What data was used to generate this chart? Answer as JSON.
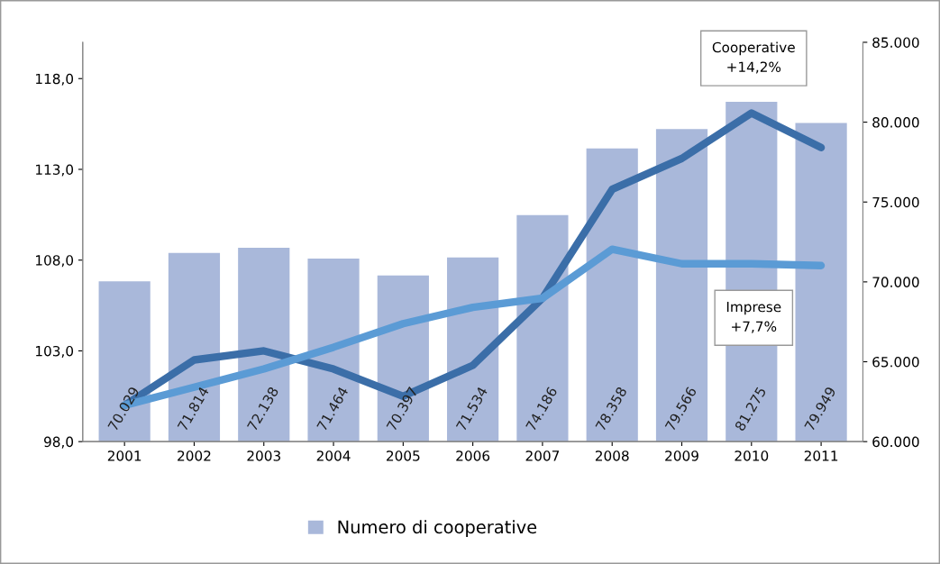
{
  "chart_data": {
    "type": "bar",
    "categories": [
      "2001",
      "2002",
      "2003",
      "2004",
      "2005",
      "2006",
      "2007",
      "2008",
      "2009",
      "2010",
      "2011"
    ],
    "series": [
      {
        "name": "Numero di cooperative",
        "axis": "y2",
        "color": "#a9b8da",
        "values": [
          70029,
          71814,
          72138,
          71464,
          70397,
          71534,
          74186,
          78358,
          79566,
          81275,
          79949
        ],
        "value_labels": [
          "70.029",
          "71.814",
          "72.138",
          "71.464",
          "70.397",
          "71.534",
          "74.186",
          "78.358",
          "79.566",
          "81.275",
          "79.949"
        ]
      },
      {
        "type": "line",
        "color": "#3b6ea8",
        "values": [
          100,
          102.5,
          103.0,
          102.0,
          100.5,
          102.2,
          105.9,
          111.9,
          113.6,
          116.1,
          114.2
        ]
      },
      {
        "type": "line",
        "color": "#5b9bd5",
        "values": [
          100,
          101.0,
          102.0,
          103.2,
          104.5,
          105.4,
          105.9,
          108.6,
          107.8,
          107.8,
          107.7
        ]
      }
    ],
    "ylim": [
      98,
      120
    ],
    "yticks": [
      {
        "value": 98,
        "label": "98,0"
      },
      {
        "value": 103,
        "label": "103,0"
      },
      {
        "value": 108,
        "label": "108,0"
      },
      {
        "value": 113,
        "label": "113,0"
      },
      {
        "value": 118,
        "label": "118,0"
      }
    ],
    "y2lim": [
      60000,
      85000
    ],
    "y2ticks": [
      {
        "value": 60000,
        "label": "60.000"
      },
      {
        "value": 65000,
        "label": "65.000"
      },
      {
        "value": 70000,
        "label": "70.000"
      },
      {
        "value": 75000,
        "label": "75.000"
      },
      {
        "value": 80000,
        "label": "80.000"
      },
      {
        "value": 85000,
        "label": "85.000"
      }
    ],
    "annotations": [
      "Cooperative\n+14,2%",
      "Imprese\n+7,7%"
    ],
    "legend": "bottom",
    "grid": false
  }
}
